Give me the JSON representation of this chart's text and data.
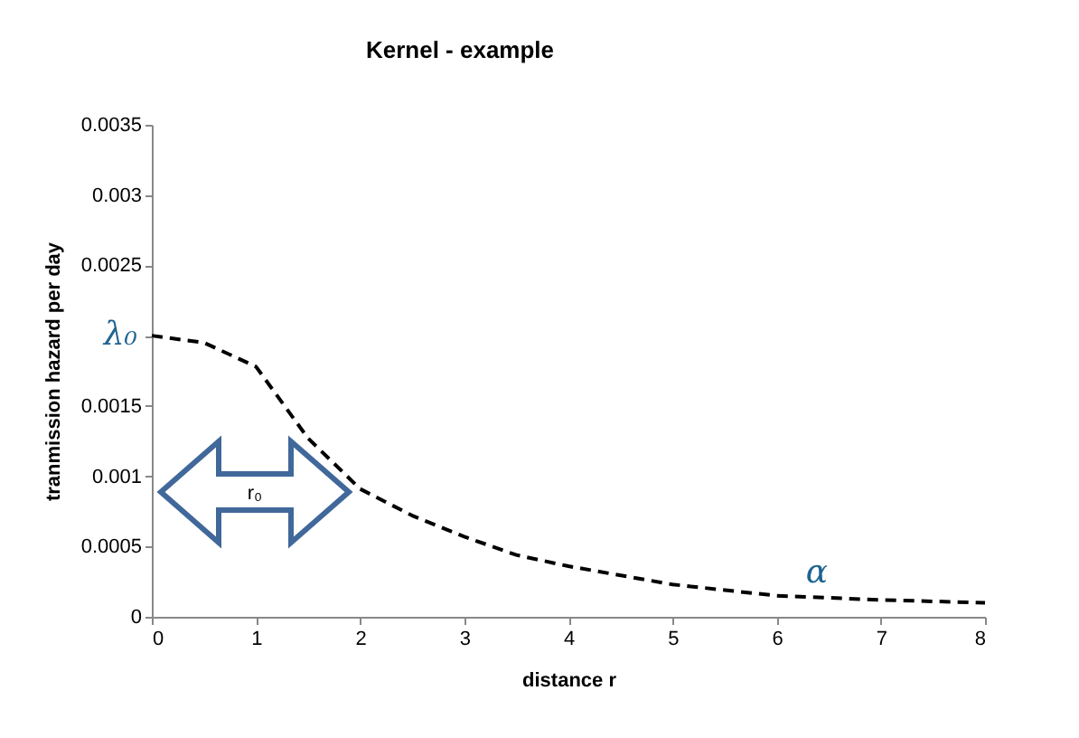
{
  "chart_data": {
    "type": "line",
    "title": "Kernel - example",
    "xlabel": "distance r",
    "ylabel": "tranmission hazard per day",
    "x": [
      0,
      0.5,
      1,
      1.5,
      2,
      2.5,
      3,
      3.5,
      4,
      5,
      6,
      7,
      8
    ],
    "values": [
      0.002,
      0.00195,
      0.00178,
      0.00127,
      0.00091,
      0.00072,
      0.00057,
      0.00044,
      0.00036,
      0.00023,
      0.00015,
      0.00012,
      0.0001
    ],
    "color": "#000000",
    "line_style": "dashed",
    "marker": "none",
    "grid": false,
    "xlim": [
      0,
      8
    ],
    "xticks": [
      0,
      1,
      2,
      3,
      4,
      5,
      6,
      7,
      8
    ],
    "ylim": [
      0,
      0.0035
    ],
    "yticks": [
      0,
      0.0005,
      0.001,
      0.0015,
      {
        "value": 0.002,
        "label": null
      },
      0.0025,
      0.003,
      0.0035
    ],
    "annotations": [
      {
        "text": "λ₀",
        "x": 0,
        "y": 0.002
      },
      "r₀",
      "α"
    ]
  }
}
